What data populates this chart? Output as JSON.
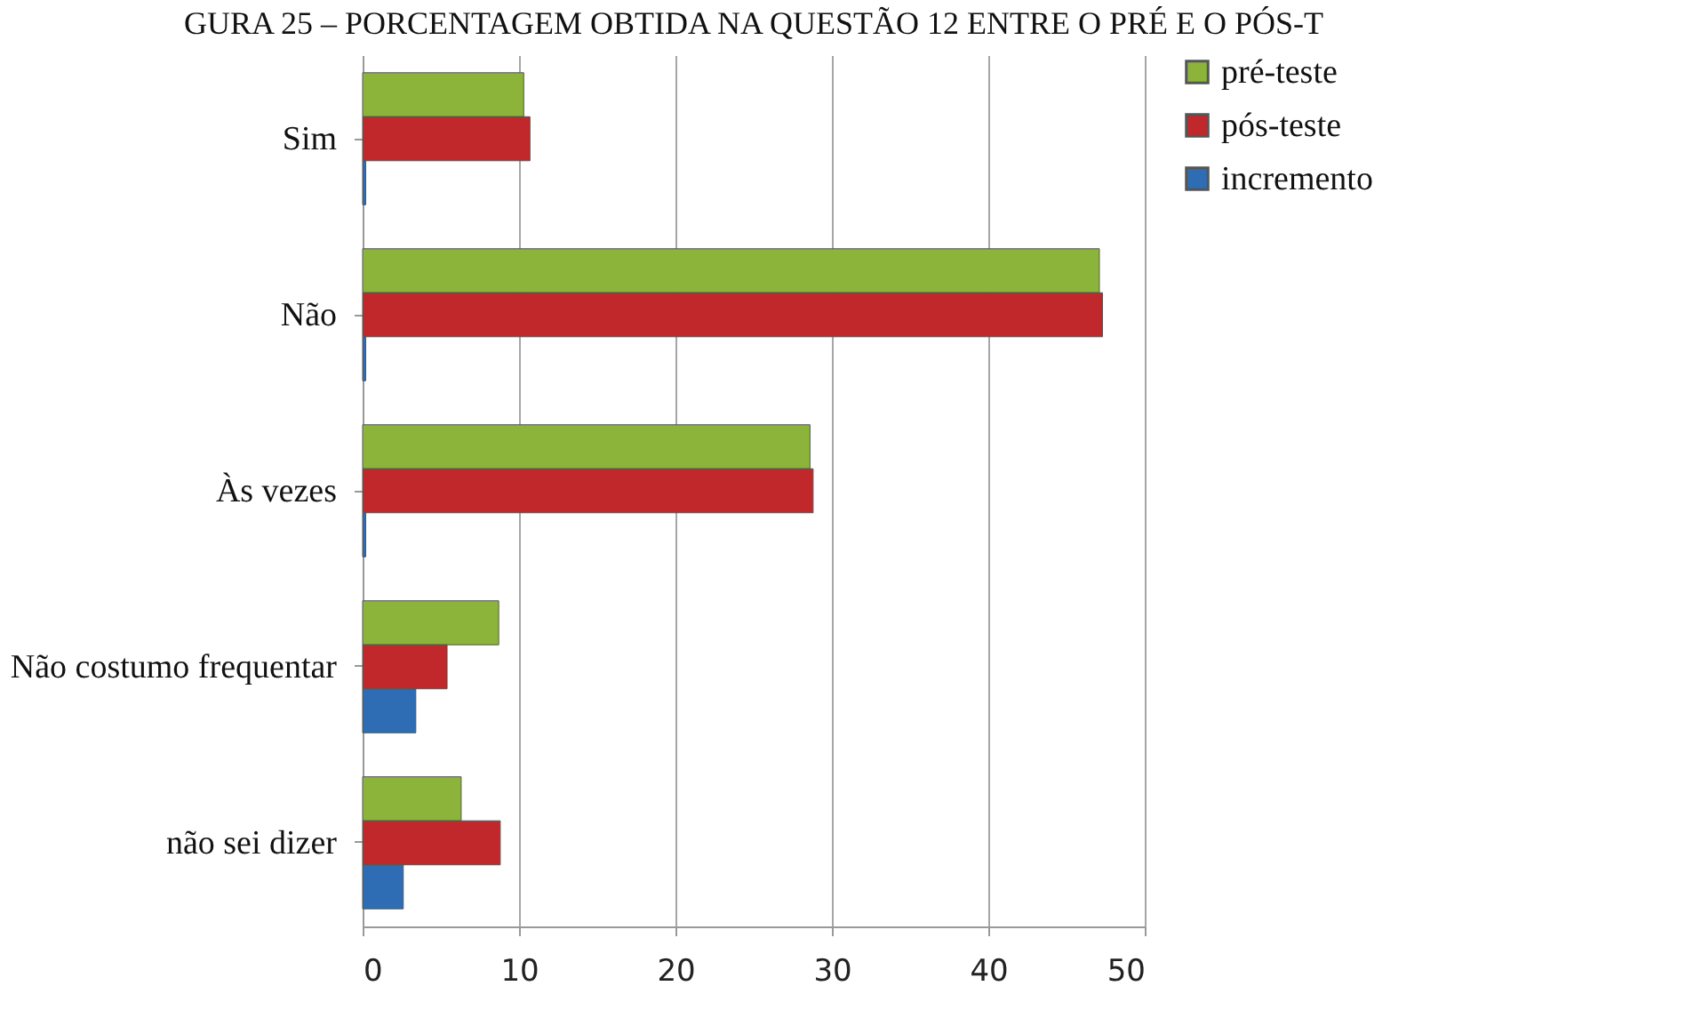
{
  "chart_data": {
    "type": "bar",
    "orientation": "horizontal",
    "title": "GURA 25 – PORCENTAGEM OBTIDA NA QUESTÃO 12 ENTRE O PRÉ E O PÓS-T",
    "categories": [
      "Sim",
      "Não",
      "Às vezes",
      "Não costumo frequentar",
      "não sei dizer"
    ],
    "series": [
      {
        "name": "pré-teste",
        "color": "#8cb43a",
        "values": [
          10.3,
          47.1,
          28.6,
          8.7,
          6.3
        ]
      },
      {
        "name": "pós-teste",
        "color": "#c0282b",
        "values": [
          10.7,
          47.3,
          28.8,
          5.4,
          8.8
        ]
      },
      {
        "name": "incremento",
        "color": "#2e6db4",
        "values": [
          0.2,
          0.2,
          0.2,
          3.4,
          2.6
        ]
      }
    ],
    "xlim": [
      0,
      50
    ],
    "xticks": [
      0,
      10,
      20,
      30,
      40,
      50
    ],
    "grid": "x",
    "legend": "right"
  }
}
